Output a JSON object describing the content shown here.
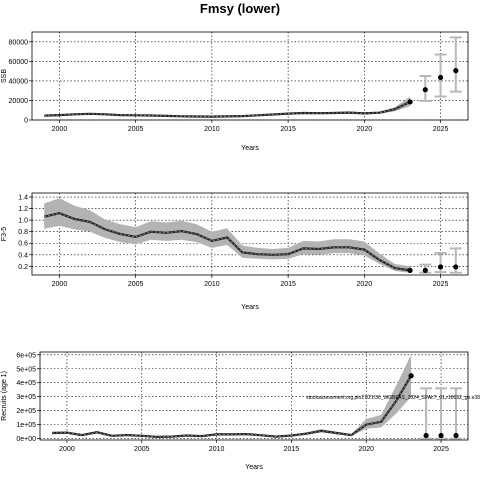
{
  "page_title": "Fmsy (lower)",
  "chart_data": [
    {
      "type": "line",
      "ylabel": "SSB",
      "xlabel": "Years",
      "xlim": [
        1998.2,
        2026.8
      ],
      "ylim": [
        0,
        90000
      ],
      "xticks": [
        2000,
        2005,
        2010,
        2015,
        2020,
        2025
      ],
      "xtick_labels": [
        "2000",
        "2005",
        "2010",
        "2015",
        "2020",
        "2025"
      ],
      "yticks": [
        0,
        20000,
        40000,
        60000,
        80000
      ],
      "ytick_labels": [
        "0",
        "20000",
        "40000",
        "60000",
        "80000"
      ],
      "grid": true,
      "series": [
        {
          "kind": "historical",
          "x": [
            1999,
            2000,
            2001,
            2002,
            2003,
            2004,
            2005,
            2006,
            2007,
            2008,
            2009,
            2010,
            2011,
            2012,
            2013,
            2014,
            2015,
            2016,
            2017,
            2018,
            2019,
            2020,
            2021,
            2022,
            2023
          ],
          "y": [
            4500,
            5000,
            5800,
            6300,
            5800,
            5000,
            4800,
            4600,
            4200,
            3800,
            3600,
            3500,
            3700,
            4000,
            4800,
            5600,
            6500,
            7200,
            7000,
            7200,
            7600,
            6800,
            7500,
            11000,
            18500
          ],
          "lower": [
            3700,
            4100,
            4900,
            5400,
            4900,
            4200,
            4000,
            3800,
            3400,
            3100,
            2900,
            2800,
            3000,
            3300,
            4000,
            4700,
            5500,
            6100,
            5900,
            6100,
            6400,
            5800,
            6300,
            9000,
            14000
          ],
          "upper": [
            5300,
            5900,
            6700,
            7200,
            6700,
            5800,
            5600,
            5400,
            5000,
            4500,
            4300,
            4200,
            4400,
            4700,
            5600,
            6500,
            7500,
            8300,
            8100,
            8300,
            8800,
            7800,
            8700,
            13000,
            24000
          ]
        },
        {
          "kind": "projection",
          "x": [
            2024,
            2025,
            2026
          ],
          "y": [
            31000,
            43500,
            50500
          ],
          "lower": [
            19500,
            24000,
            29000
          ],
          "upper": [
            45000,
            67000,
            84500
          ]
        }
      ]
    },
    {
      "type": "line",
      "ylabel": "F3-5",
      "xlabel": "Years",
      "xlim": [
        1998.2,
        2026.8
      ],
      "ylim": [
        0.05,
        1.47
      ],
      "xticks": [
        2000,
        2005,
        2010,
        2015,
        2020,
        2025
      ],
      "xtick_labels": [
        "2000",
        "2005",
        "2010",
        "2015",
        "2020",
        "2025"
      ],
      "yticks": [
        0.2,
        0.4,
        0.6,
        0.8,
        1.0,
        1.2,
        1.4
      ],
      "ytick_labels": [
        "0.2",
        "0.4",
        "0.6",
        "0.8",
        "1.0",
        "1.2",
        "1.4"
      ],
      "grid": true,
      "series": [
        {
          "kind": "historical",
          "x": [
            1999,
            2000,
            2001,
            2002,
            2003,
            2004,
            2005,
            2006,
            2007,
            2008,
            2009,
            2010,
            2011,
            2012,
            2013,
            2014,
            2015,
            2016,
            2017,
            2018,
            2019,
            2020,
            2021,
            2022,
            2023
          ],
          "y": [
            1.06,
            1.12,
            1.02,
            0.97,
            0.84,
            0.76,
            0.71,
            0.8,
            0.78,
            0.81,
            0.76,
            0.64,
            0.7,
            0.44,
            0.41,
            0.4,
            0.41,
            0.51,
            0.5,
            0.53,
            0.53,
            0.49,
            0.31,
            0.17,
            0.13
          ],
          "lower": [
            0.85,
            0.9,
            0.84,
            0.8,
            0.69,
            0.62,
            0.58,
            0.66,
            0.64,
            0.66,
            0.62,
            0.52,
            0.57,
            0.35,
            0.33,
            0.32,
            0.33,
            0.41,
            0.4,
            0.43,
            0.43,
            0.39,
            0.24,
            0.12,
            0.09
          ],
          "upper": [
            1.29,
            1.38,
            1.25,
            1.17,
            1.01,
            0.93,
            0.88,
            0.98,
            0.96,
            0.99,
            0.93,
            0.8,
            0.86,
            0.56,
            0.52,
            0.5,
            0.52,
            0.64,
            0.63,
            0.67,
            0.67,
            0.63,
            0.42,
            0.24,
            0.2
          ]
        },
        {
          "kind": "projection",
          "x": [
            2024,
            2025,
            2026
          ],
          "y": [
            0.13,
            0.19,
            0.19
          ],
          "lower": [
            0.09,
            0.1,
            0.09
          ],
          "upper": [
            0.23,
            0.43,
            0.51
          ]
        }
      ]
    },
    {
      "type": "line",
      "ylabel": "Recruits (age 1)",
      "xlabel": "Years",
      "xlim": [
        1998.2,
        2026.8
      ],
      "ylim": [
        -10000,
        620000
      ],
      "xticks": [
        2000,
        2005,
        2010,
        2015,
        2020,
        2025
      ],
      "xtick_labels": [
        "2000",
        "2005",
        "2010",
        "2015",
        "2020",
        "2025"
      ],
      "yticks": [
        0,
        100000,
        200000,
        300000,
        400000,
        500000,
        600000
      ],
      "ytick_labels": [
        "0e+00",
        "1e+05",
        "2e+05",
        "3e+05",
        "4e+05",
        "5e+05",
        "6e+05"
      ],
      "grid": true,
      "annotation": "stockassessment.org,plo27/21/36_WGBFAS_2024_SPALT_01,r18032_gb.e38",
      "series": [
        {
          "kind": "historical",
          "x": [
            1999,
            2000,
            2001,
            2002,
            2003,
            2004,
            2005,
            2006,
            2007,
            2008,
            2009,
            2010,
            2011,
            2012,
            2013,
            2014,
            2015,
            2016,
            2017,
            2018,
            2019,
            2020,
            2021,
            2022,
            2023
          ],
          "y": [
            40000,
            42000,
            25000,
            45000,
            20000,
            25000,
            20000,
            12000,
            14000,
            22000,
            18000,
            30000,
            30000,
            32000,
            24000,
            14000,
            22000,
            35000,
            55000,
            40000,
            25000,
            100000,
            120000,
            270000,
            450000
          ],
          "lower": [
            32000,
            34000,
            19000,
            37000,
            15000,
            19000,
            15000,
            8000,
            10000,
            17000,
            13000,
            24000,
            24000,
            25000,
            18000,
            10000,
            17000,
            28000,
            45000,
            32000,
            18000,
            70000,
            80000,
            180000,
            300000
          ],
          "upper": [
            50000,
            52000,
            32000,
            55000,
            27000,
            32000,
            27000,
            17000,
            19000,
            29000,
            24000,
            38000,
            38000,
            40000,
            31000,
            19000,
            28000,
            45000,
            68000,
            50000,
            33000,
            140000,
            170000,
            380000,
            600000
          ]
        },
        {
          "kind": "projection",
          "x": [
            2024,
            2025,
            2026
          ],
          "y": [
            22000,
            22000,
            22000
          ],
          "lower": [
            0,
            0,
            0
          ],
          "upper": [
            360000,
            360000,
            360000
          ]
        }
      ]
    }
  ]
}
